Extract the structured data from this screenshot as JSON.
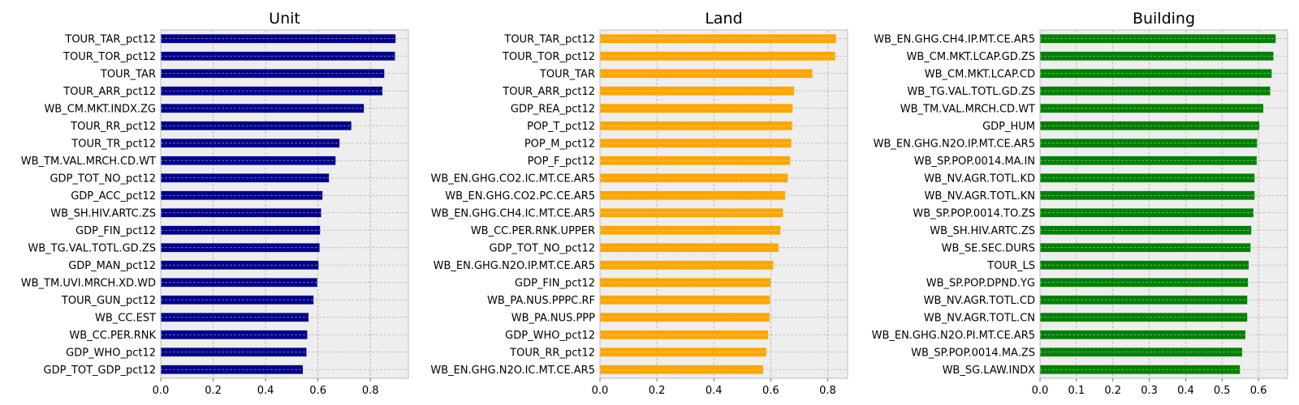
{
  "chart_data": [
    {
      "type": "bar",
      "orientation": "horizontal",
      "title": "Unit",
      "xlabel": "",
      "ylabel": "",
      "color": "#00008b",
      "grid": true,
      "xlim": [
        0,
        0.945
      ],
      "xticks": [
        0.0,
        0.2,
        0.4,
        0.6,
        0.8
      ],
      "xtick_labels": [
        "0.0",
        "0.2",
        "0.4",
        "0.6",
        "0.8"
      ],
      "categories": [
        "TOUR_TAR_pct12",
        "TOUR_TOR_pct12",
        "TOUR_TAR",
        "TOUR_ARR_pct12",
        "WB_CM.MKT.INDX.ZG",
        "TOUR_RR_pct12",
        "TOUR_TR_pct12",
        "WB_TM.VAL.MRCH.CD.WT",
        "GDP_TOT_NO_pct12",
        "GDP_ACC_pct12",
        "WB_SH.HIV.ARTC.ZS",
        "GDP_FIN_pct12",
        "WB_TG.VAL.TOTL.GD.ZS",
        "GDP_MAN_pct12",
        "WB_TM.UVI.MRCH.XD.WD",
        "TOUR_GUN_pct12",
        "WB_CC.EST",
        "WB_CC.PER.RNK",
        "GDP_WHO_pct12",
        "GDP_TOT_GDP_pct12"
      ],
      "values": [
        0.896,
        0.894,
        0.853,
        0.846,
        0.775,
        0.727,
        0.682,
        0.667,
        0.642,
        0.617,
        0.612,
        0.608,
        0.606,
        0.602,
        0.597,
        0.583,
        0.564,
        0.559,
        0.556,
        0.542
      ]
    },
    {
      "type": "bar",
      "orientation": "horizontal",
      "title": "Land",
      "xlabel": "",
      "ylabel": "",
      "color": "#ffa500",
      "grid": true,
      "xlim": [
        0,
        0.87
      ],
      "xticks": [
        0.0,
        0.2,
        0.4,
        0.6,
        0.8
      ],
      "xtick_labels": [
        "0.0",
        "0.2",
        "0.4",
        "0.6",
        "0.8"
      ],
      "categories": [
        "TOUR_TAR_pct12",
        "TOUR_TOR_pct12",
        "TOUR_TAR",
        "TOUR_ARR_pct12",
        "GDP_REA_pct12",
        "POP_T_pct12",
        "POP_M_pct12",
        "POP_F_pct12",
        "WB_EN.GHG.CO2.IC.MT.CE.AR5",
        "WB_EN.GHG.CO2.PC.CE.AR5",
        "WB_EN.GHG.CH4.IC.MT.CE.AR5",
        "WB_CC.PER.RNK.UPPER",
        "GDP_TOT_NO_pct12",
        "WB_EN.GHG.N2O.IP.MT.CE.AR5",
        "GDP_FIN_pct12",
        "WB_PA.NUS.PPPC.RF",
        "WB_PA.NUS.PPP",
        "GDP_WHO_pct12",
        "TOUR_RR_pct12",
        "WB_EN.GHG.N2O.IC.MT.CE.AR5"
      ],
      "values": [
        0.829,
        0.826,
        0.746,
        0.682,
        0.677,
        0.675,
        0.672,
        0.668,
        0.66,
        0.651,
        0.643,
        0.634,
        0.627,
        0.609,
        0.599,
        0.597,
        0.596,
        0.591,
        0.584,
        0.573
      ]
    },
    {
      "type": "bar",
      "orientation": "horizontal",
      "title": "Building",
      "xlabel": "",
      "ylabel": "",
      "color": "#008000",
      "grid": true,
      "xlim": [
        0,
        0.68
      ],
      "xticks": [
        0.0,
        0.1,
        0.2,
        0.3,
        0.4,
        0.5,
        0.6
      ],
      "xtick_labels": [
        "0.0",
        "0.1",
        "0.2",
        "0.3",
        "0.4",
        "0.5",
        "0.6"
      ],
      "categories": [
        "WB_EN.GHG.CH4.IP.MT.CE.AR5",
        "WB_CM.MKT.LCAP.GD.ZS",
        "WB_CM.MKT.LCAP.CD",
        "WB_TG.VAL.TOTL.GD.ZS",
        "WB_TM.VAL.MRCH.CD.WT",
        "GDP_HUM",
        "WB_EN.GHG.N2O.IP.MT.CE.AR5",
        "WB_SP.POP.0014.MA.IN",
        "WB_NV.AGR.TOTL.KD",
        "WB_NV.AGR.TOTL.KN",
        "WB_SP.POP.0014.TO.ZS",
        "WB_SH.HIV.ARTC.ZS",
        "WB_SE.SEC.DURS",
        "TOUR_LS",
        "WB_SP.POP.DPND.YG",
        "WB_NV.AGR.TOTL.CD",
        "WB_NV.AGR.TOTL.CN",
        "WB_EN.GHG.N2O.PI.MT.CE.AR5",
        "WB_SP.POP.0014.MA.ZS",
        "WB_SG.LAW.INDX"
      ],
      "values": [
        0.647,
        0.641,
        0.636,
        0.632,
        0.613,
        0.602,
        0.596,
        0.595,
        0.589,
        0.589,
        0.586,
        0.58,
        0.578,
        0.573,
        0.571,
        0.569,
        0.569,
        0.564,
        0.555,
        0.549
      ]
    }
  ]
}
